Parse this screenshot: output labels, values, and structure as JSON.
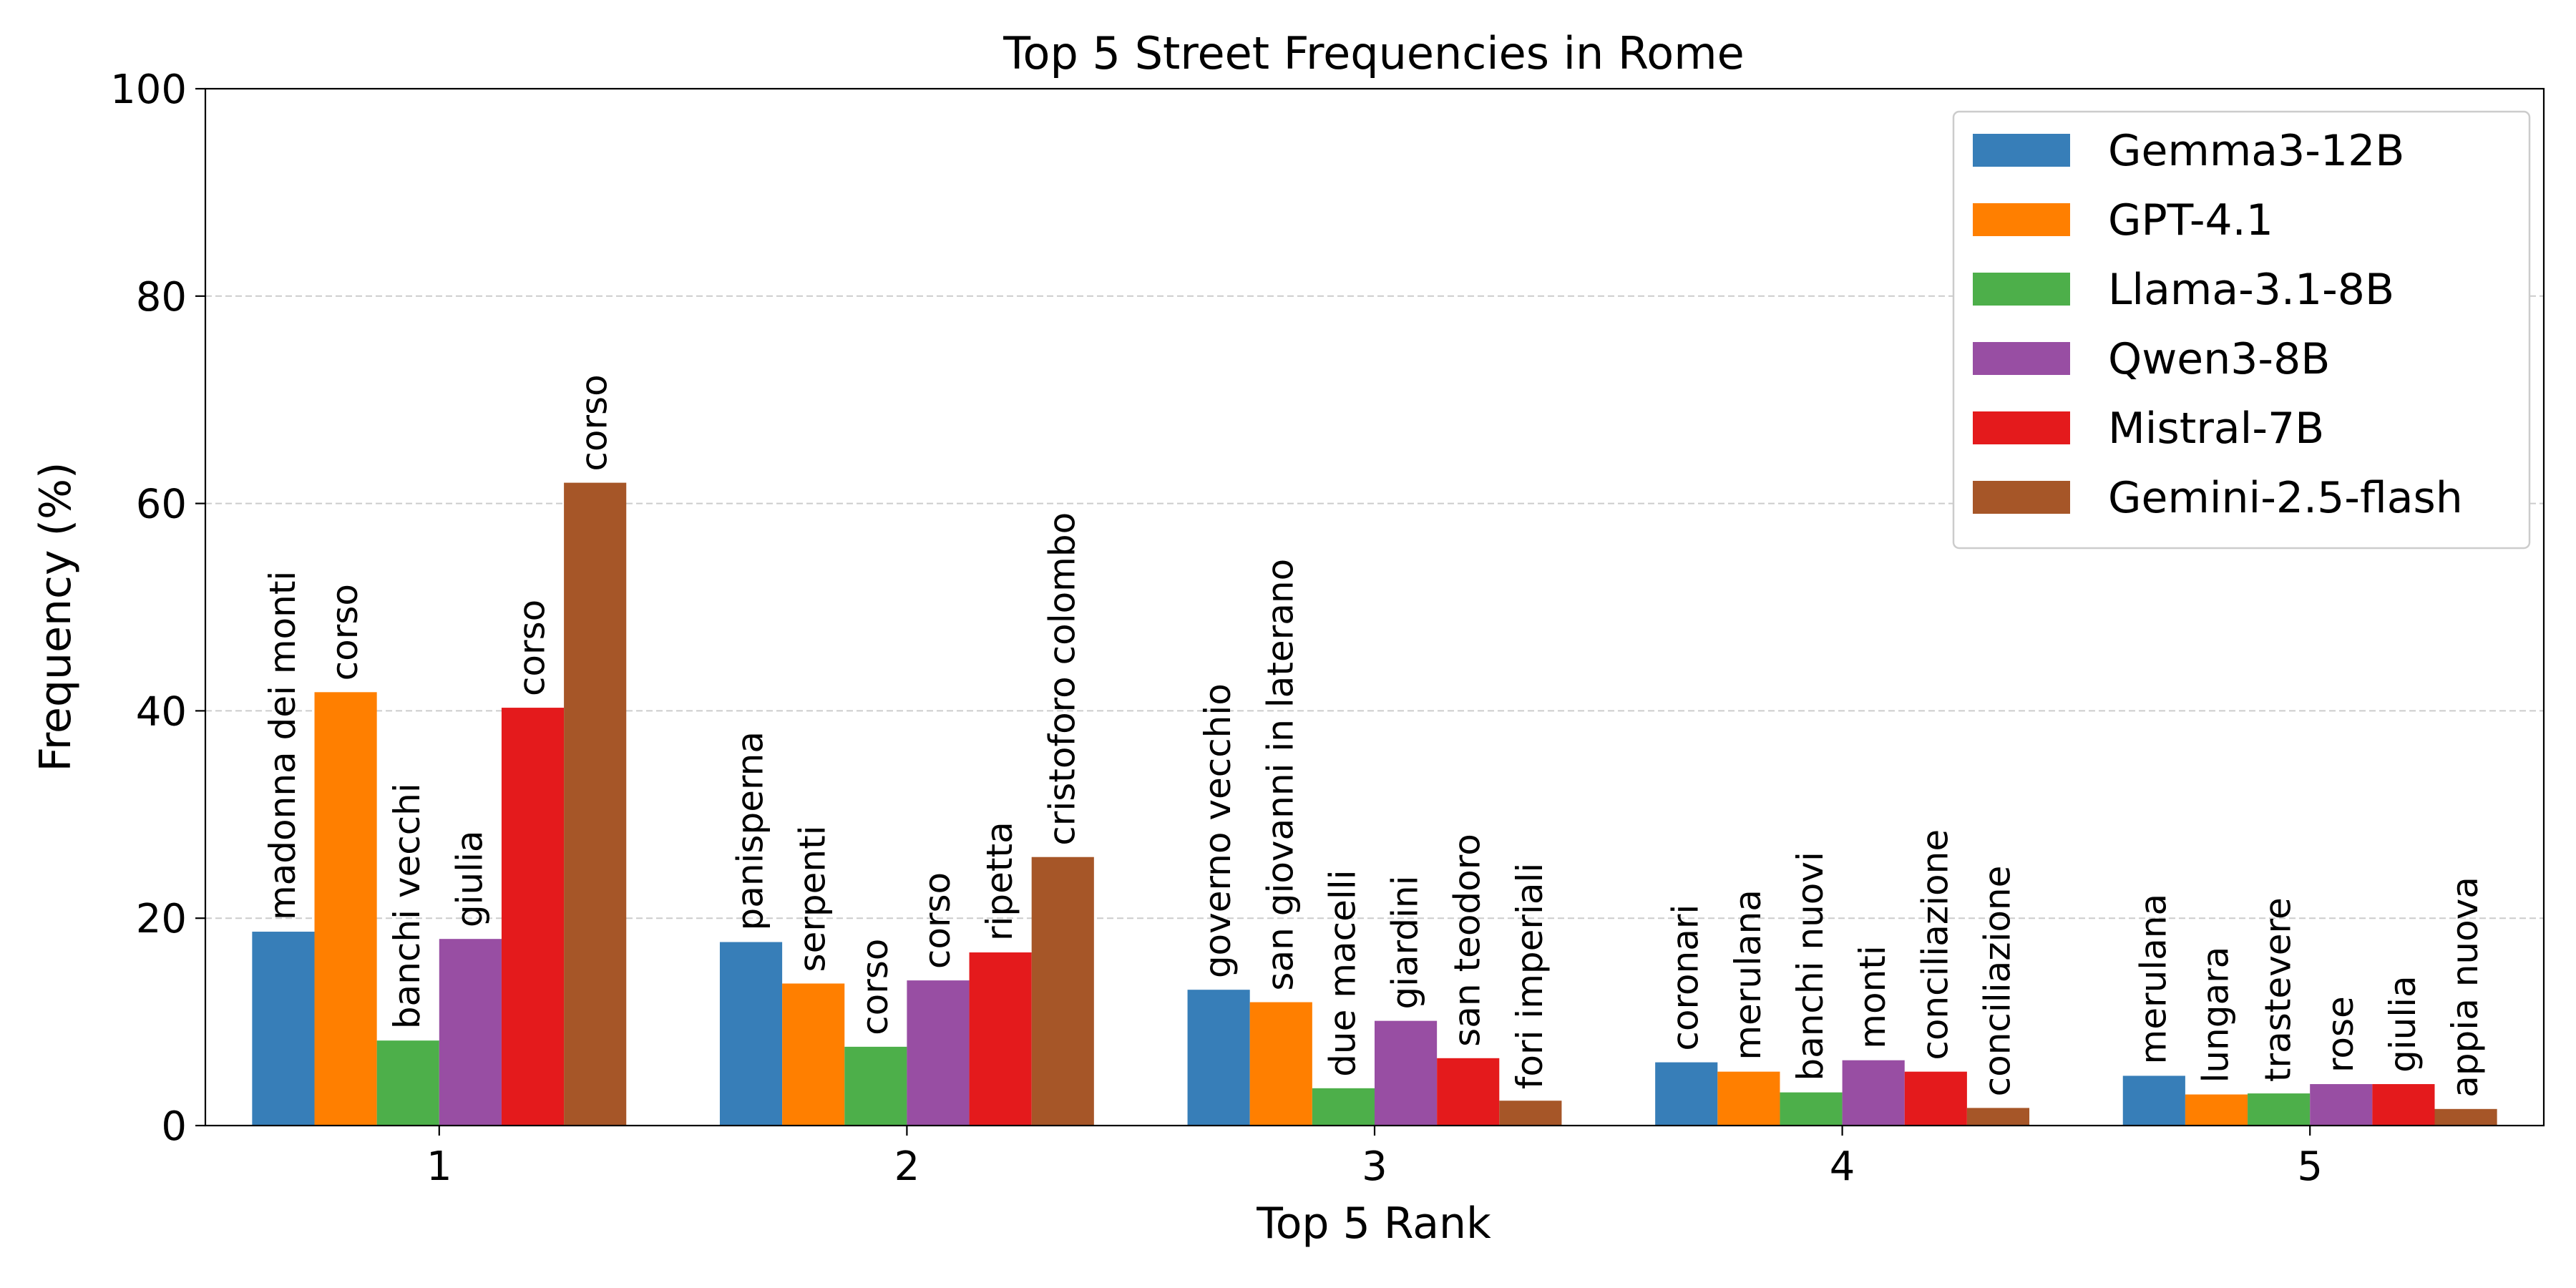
{
  "chart_data": {
    "type": "bar",
    "title": "Top 5 Street Frequencies in Rome",
    "xlabel": "Top 5 Rank",
    "ylabel": "Frequency (%)",
    "categories": [
      "1",
      "2",
      "3",
      "4",
      "5"
    ],
    "ylim": [
      0,
      100
    ],
    "yticks": [
      0,
      20,
      40,
      60,
      80,
      100
    ],
    "grid": "horizontal dashed",
    "legend_position": "top-right",
    "series": [
      {
        "name": "Gemma3-12B",
        "color": "#377eb8",
        "values": [
          18.7,
          17.7,
          13.1,
          6.1,
          4.8
        ],
        "labels": [
          "madonna dei monti",
          "panisperna",
          "governo vecchio",
          "coronari",
          "merulana"
        ]
      },
      {
        "name": "GPT-4.1",
        "color": "#ff7f00",
        "values": [
          41.8,
          13.7,
          11.9,
          5.2,
          3.0
        ],
        "labels": [
          "corso",
          "serpenti",
          "san giovanni in laterano",
          "merulana",
          "lungara"
        ]
      },
      {
        "name": "Llama-3.1-8B",
        "color": "#4daf4a",
        "values": [
          8.2,
          7.6,
          3.6,
          3.2,
          3.1
        ],
        "labels": [
          "banchi vecchi",
          "corso",
          "due macelli",
          "banchi nuovi",
          "trastevere"
        ]
      },
      {
        "name": "Qwen3-8B",
        "color": "#984ea3",
        "values": [
          18.0,
          14.0,
          10.1,
          6.3,
          4.0
        ],
        "labels": [
          "giulia",
          "corso",
          "giardini",
          "monti",
          "rose"
        ]
      },
      {
        "name": "Mistral-7B",
        "color": "#e41a1c",
        "values": [
          40.3,
          16.7,
          6.5,
          5.2,
          4.0
        ],
        "labels": [
          "corso",
          "ripetta",
          "san teodoro",
          "conciliazione",
          "giulia"
        ]
      },
      {
        "name": "Gemini-2.5-flash",
        "color": "#a65628",
        "values": [
          62.0,
          25.9,
          2.4,
          1.7,
          1.6
        ],
        "labels": [
          "corso",
          "cristoforo colombo",
          "fori imperiali",
          "conciliazione",
          "appia nuova"
        ]
      }
    ]
  }
}
